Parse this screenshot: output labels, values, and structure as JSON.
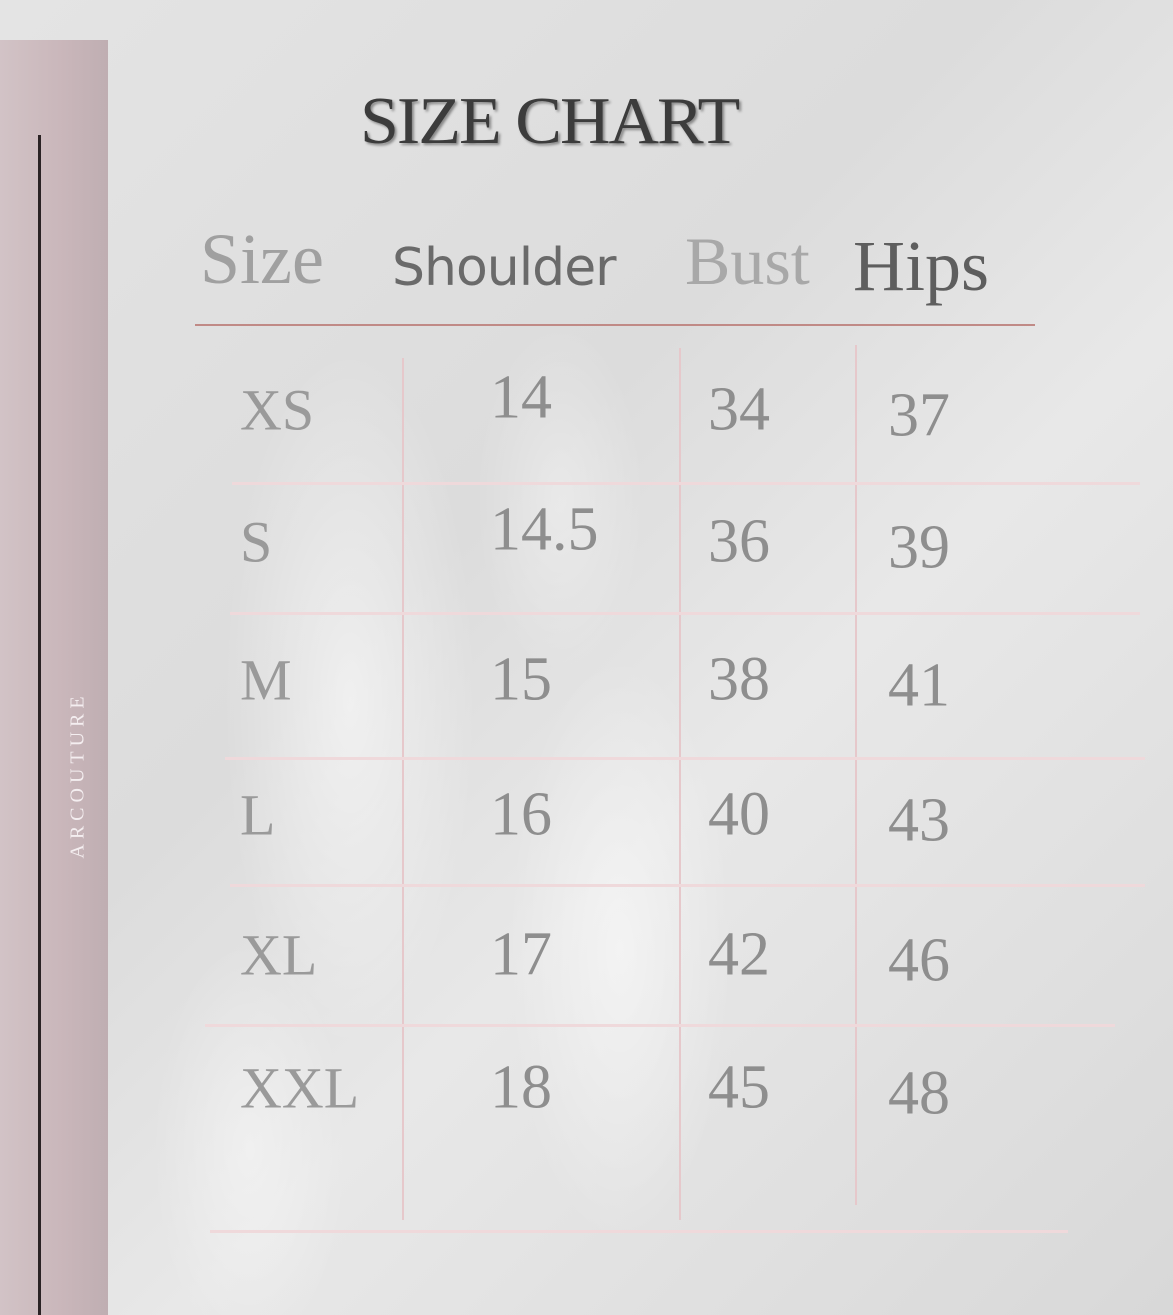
{
  "title": "SIZE CHART",
  "brand": "ARCOUTURE",
  "headers": {
    "size": "Size",
    "shoulder": "Shoulder",
    "bust": "Bust",
    "hips": "Hips"
  },
  "rows": [
    {
      "size": "XS",
      "shoulder": "14",
      "bust": "34",
      "hips": "37"
    },
    {
      "size": "S",
      "shoulder": "14.5",
      "bust": "36",
      "hips": "39"
    },
    {
      "size": "M",
      "shoulder": "15",
      "bust": "38",
      "hips": "41"
    },
    {
      "size": "L",
      "shoulder": "16",
      "bust": "40",
      "hips": "43"
    },
    {
      "size": "XL",
      "shoulder": "17",
      "bust": "42",
      "hips": "46"
    },
    {
      "size": "XXL",
      "shoulder": "18",
      "bust": "45",
      "hips": "48"
    }
  ],
  "colors": {
    "accent_line": "#c08a86",
    "grid": "#e6c8cb",
    "side_band": "#c9b6ba"
  }
}
